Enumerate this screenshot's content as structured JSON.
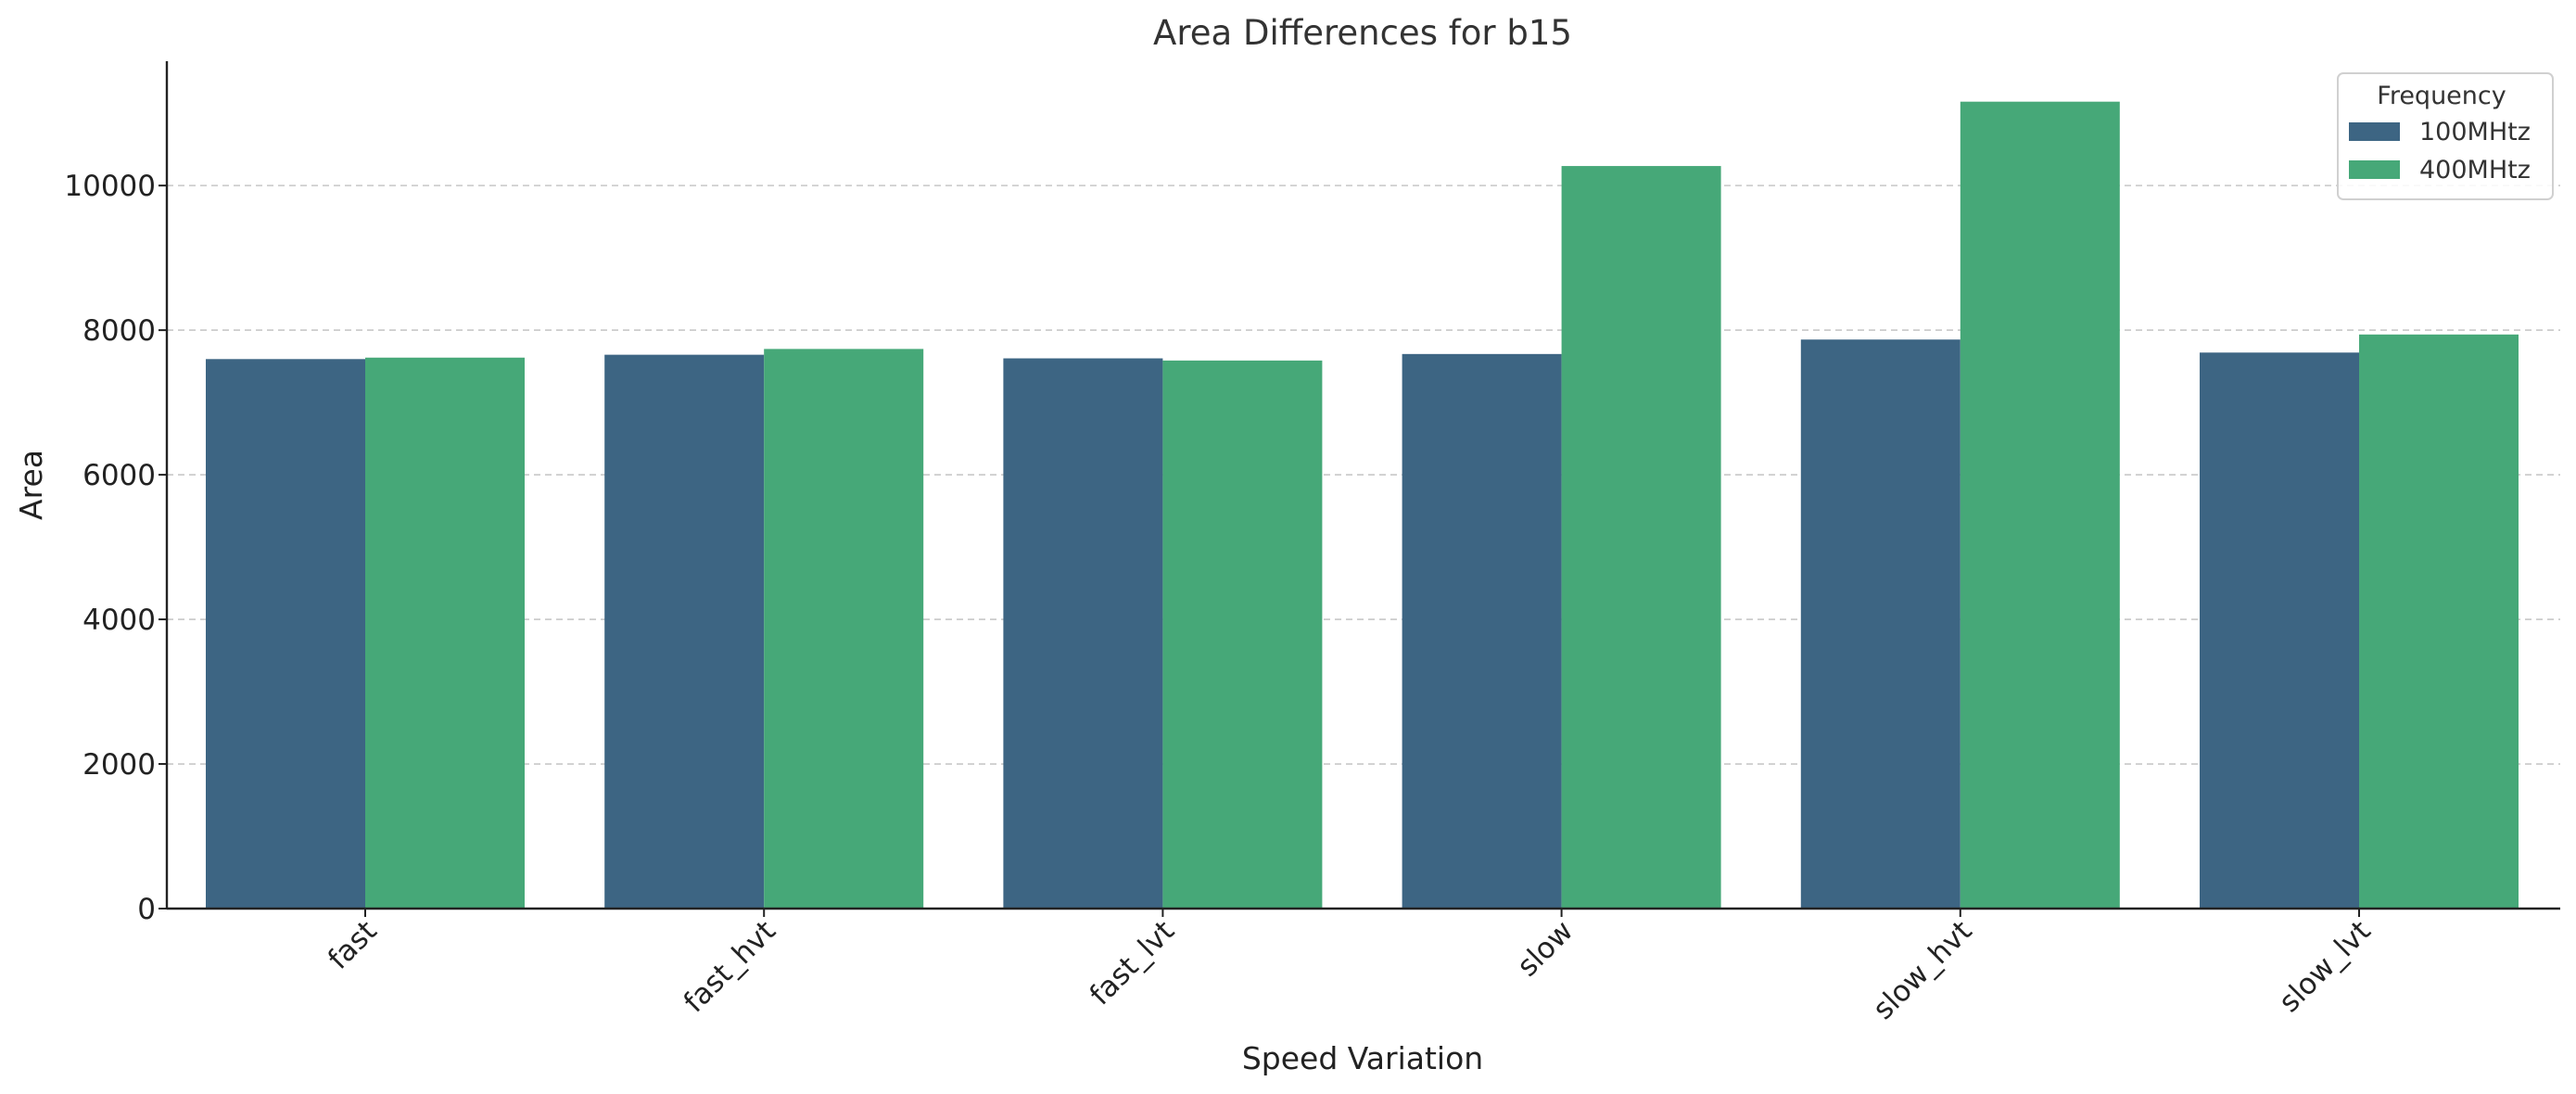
{
  "chart_data": {
    "type": "bar",
    "title": "Area Differences for b15",
    "xlabel": "Speed Variation",
    "ylabel": "Area",
    "categories": [
      "fast",
      "fast_hvt",
      "fast_lvt",
      "slow",
      "slow_hvt",
      "slow_lvt"
    ],
    "series": [
      {
        "name": "100MHtz",
        "color": "#3d6583",
        "values": [
          7600,
          7660,
          7610,
          7670,
          7870,
          7690
        ]
      },
      {
        "name": "400MHtz",
        "color": "#46a878",
        "values": [
          7620,
          7740,
          7580,
          10270,
          11160,
          7940
        ]
      }
    ],
    "ylim": [
      0,
      11720
    ],
    "yticks": [
      0,
      2000,
      4000,
      6000,
      8000,
      10000
    ],
    "grid": true,
    "legend": {
      "title": "Frequency",
      "position": "top-right"
    }
  }
}
